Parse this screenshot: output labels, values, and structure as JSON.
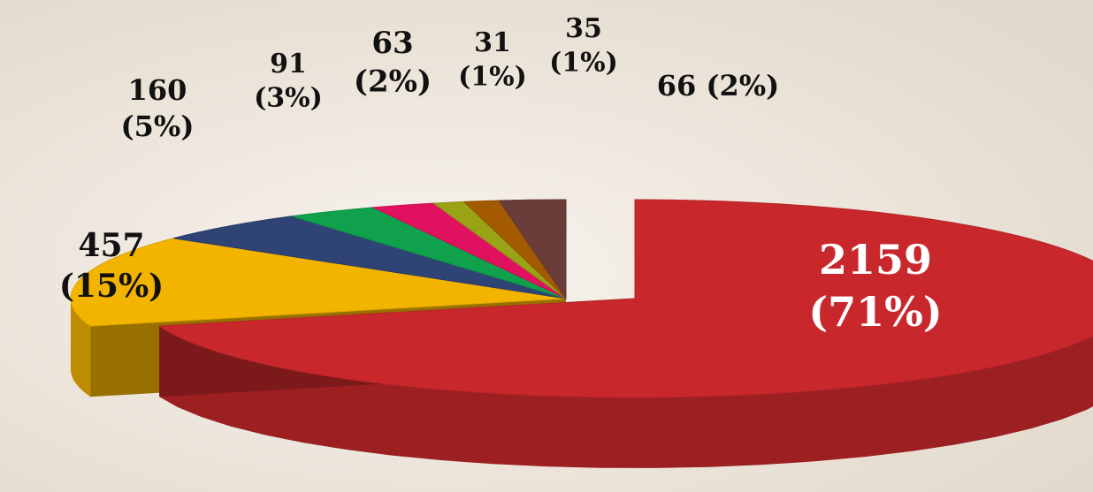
{
  "chart_data": {
    "type": "pie",
    "title": "",
    "legend": "none",
    "slices": [
      {
        "value": 2159,
        "percent": 71,
        "label_value": "2159",
        "label_percent": "(71%)",
        "color": "#c8282c"
      },
      {
        "value": 457,
        "percent": 15,
        "label_value": "457",
        "label_percent": "(15%)",
        "color": "#f3b400"
      },
      {
        "value": 160,
        "percent": 5,
        "label_value": "160",
        "label_percent": "(5%)",
        "color": "#2f4375"
      },
      {
        "value": 91,
        "percent": 3,
        "label_value": "91",
        "label_percent": "(3%)",
        "color": "#0fa14b"
      },
      {
        "value": 63,
        "percent": 2,
        "label_value": "63",
        "label_percent": "(2%)",
        "color": "#e0115f"
      },
      {
        "value": 31,
        "percent": 1,
        "label_value": "31",
        "label_percent": "(1%)",
        "color": "#9aa316"
      },
      {
        "value": 35,
        "percent": 1,
        "label_value": "35",
        "label_percent": "(1%)",
        "color": "#a35a00"
      },
      {
        "value": 66,
        "percent": 2,
        "label_value": "66",
        "label_percent": "(2%)",
        "color": "#6b3d3a"
      }
    ]
  }
}
